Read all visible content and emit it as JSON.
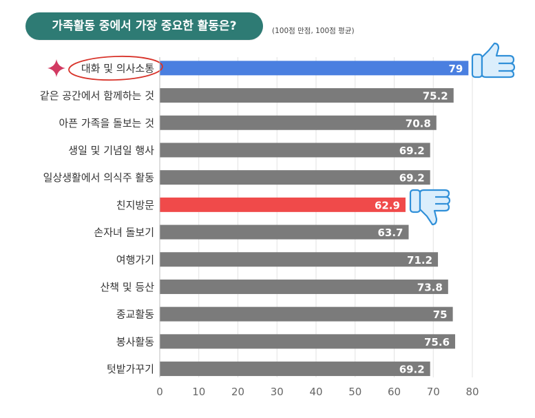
{
  "header": {
    "title": "가족활동 중에서 가장 중요한 활동은?",
    "note": "(100점 만점, 100점 평균)"
  },
  "colors": {
    "title_bg": "#2e7b74",
    "bar_default": "#7b7b7b",
    "bar_highest": "#4a7fe0",
    "bar_lowest": "#f04a4a",
    "highlight_circle": "#d8332a",
    "star": "#d23a62",
    "thumb_icon": "#2f8fd8"
  },
  "icons": {
    "highlight_marker": "sparkle-star-icon",
    "top_marker": "thumbs-up-icon",
    "bottom_marker": "thumbs-down-icon"
  },
  "chart_data": {
    "type": "bar",
    "orientation": "horizontal",
    "categories": [
      "대화 및 의사소통",
      "같은 공간에서 함께하는 것",
      "아픈 가족을 돌보는 것",
      "생일 및 기념일 행사",
      "일상생활에서 의식주 활동",
      "친지방문",
      "손자녀 돌보기",
      "여행가기",
      "산책 및 등산",
      "종교활동",
      "봉사활동",
      "텃밭가꾸기"
    ],
    "values": [
      79,
      75.2,
      70.8,
      69.2,
      69.2,
      62.9,
      63.7,
      71.2,
      73.8,
      75,
      75.6,
      69.2
    ],
    "value_labels": [
      "79",
      "75.2",
      "70.8",
      "69.2",
      "69.2",
      "62.9",
      "63.7",
      "71.2",
      "73.8",
      "75",
      "75.6",
      "69.2"
    ],
    "highlight_max_index": 0,
    "highlight_min_index": 5,
    "xlim": [
      0,
      80
    ],
    "xticks": [
      0,
      10,
      20,
      30,
      40,
      50,
      60,
      70,
      80
    ],
    "grid": true
  }
}
